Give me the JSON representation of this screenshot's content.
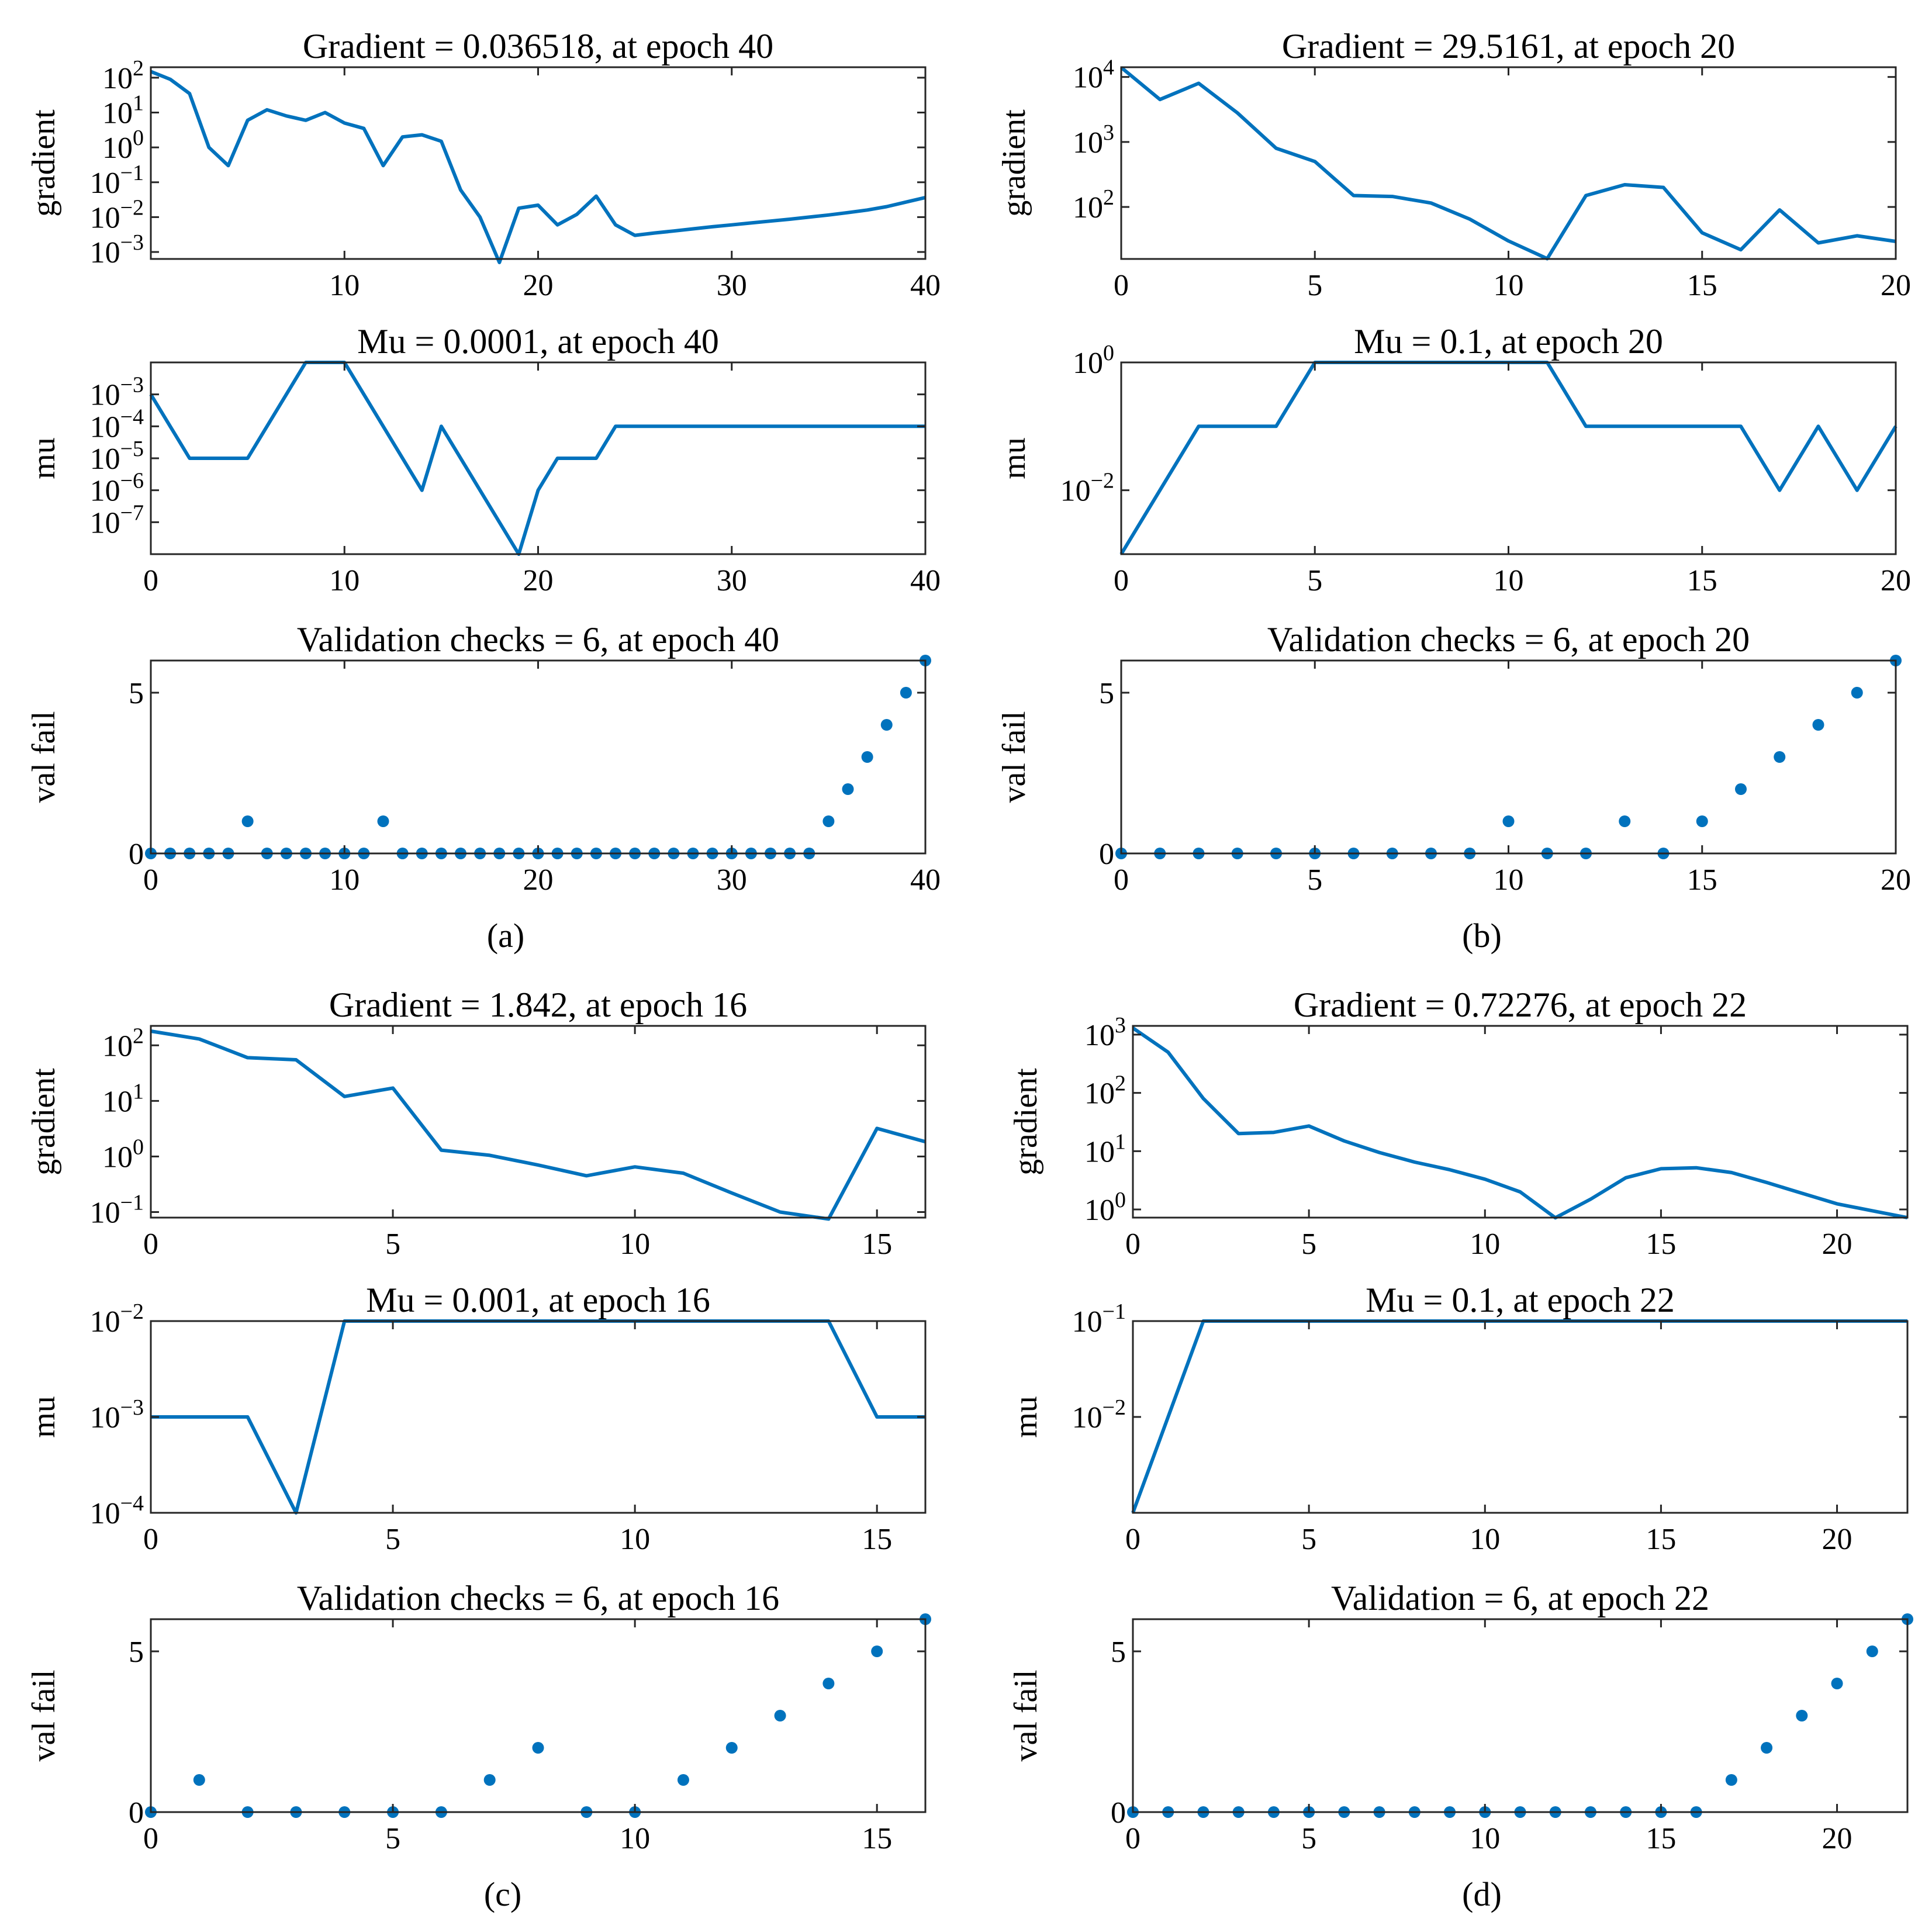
{
  "colors": {
    "series": "#0072BD",
    "axes": "#262626",
    "background": "#ffffff"
  },
  "panel_labels": {
    "a": "(a)",
    "b": "(b)",
    "c": "(c)",
    "d": "(d)"
  },
  "chart_data": [
    {
      "id": "a1",
      "type": "line",
      "title": "Gradient = 0.036518,  at epoch 40",
      "ylabel": "gradient",
      "yscale": "log",
      "xlim": [
        0,
        40
      ],
      "ylim_exp": [
        -3.2,
        2.3
      ],
      "xticks": [
        10,
        20,
        30,
        40
      ],
      "xtick_labels": [
        "10",
        "20",
        "30",
        "40"
      ],
      "yticks_exp": [
        -3,
        -2,
        -1,
        0,
        1,
        2
      ],
      "ytick_labels": [
        "10^-3",
        "10^-2",
        "10^-1",
        "10^0",
        "10^1",
        "10^2"
      ],
      "x": [
        0,
        1,
        2,
        3,
        4,
        5,
        6,
        7,
        8,
        9,
        10,
        11,
        12,
        13,
        14,
        15,
        16,
        17,
        18,
        19,
        20,
        21,
        22,
        23,
        24,
        25,
        26,
        27,
        28,
        29,
        30,
        31,
        32,
        33,
        34,
        35,
        36,
        37,
        38,
        39,
        40
      ],
      "values": [
        150,
        90,
        35,
        1.0,
        0.3,
        6,
        12,
        8,
        6,
        10,
        5,
        3.5,
        0.3,
        2,
        2.3,
        1.5,
        0.06,
        0.01,
        0.0005,
        0.018,
        0.022,
        0.006,
        0.012,
        0.04,
        0.006,
        0.003,
        0.0035,
        0.004,
        0.0046,
        0.0053,
        0.006,
        0.0068,
        0.0077,
        0.0087,
        0.01,
        0.0115,
        0.0135,
        0.016,
        0.02,
        0.027,
        0.036518
      ]
    },
    {
      "id": "a2",
      "type": "line",
      "title": "Mu = 0.0001, at epoch 40",
      "ylabel": "mu",
      "yscale": "log",
      "xlim": [
        0,
        40
      ],
      "ylim_exp": [
        -8,
        -2
      ],
      "xticks": [
        0,
        10,
        20,
        30,
        40
      ],
      "xtick_labels": [
        "0",
        "10",
        "20",
        "30",
        "40"
      ],
      "yticks_exp": [
        -7,
        -6,
        -5,
        -4,
        -3
      ],
      "ytick_labels": [
        "10^-7",
        "10^-6",
        "10^-5",
        "10^-4",
        "10^-3"
      ],
      "x": [
        0,
        2,
        5,
        8,
        10,
        14,
        15,
        19,
        20,
        21,
        23,
        24,
        40
      ],
      "values": [
        0.001,
        1e-05,
        1e-05,
        0.01,
        0.01,
        1e-06,
        0.0001,
        1e-08,
        1e-06,
        1e-05,
        1e-05,
        0.0001,
        0.0001
      ]
    },
    {
      "id": "a3",
      "type": "scatter",
      "title": "Validation checks = 6, at epoch 40",
      "ylabel": "val fail",
      "yscale": "linear",
      "xlim": [
        0,
        40
      ],
      "ylim": [
        0,
        6
      ],
      "xticks": [
        0,
        10,
        20,
        30,
        40
      ],
      "xtick_labels": [
        "0",
        "10",
        "20",
        "30",
        "40"
      ],
      "yticks": [
        0,
        5
      ],
      "ytick_labels": [
        "0",
        "5"
      ],
      "x": [
        0,
        1,
        2,
        3,
        4,
        5,
        6,
        7,
        8,
        9,
        10,
        11,
        12,
        13,
        14,
        15,
        16,
        17,
        18,
        19,
        20,
        21,
        22,
        23,
        24,
        25,
        26,
        27,
        28,
        29,
        30,
        31,
        32,
        33,
        34,
        35,
        36,
        37,
        38,
        39,
        40
      ],
      "values": [
        0,
        0,
        0,
        0,
        0,
        1,
        0,
        0,
        0,
        0,
        0,
        0,
        1,
        0,
        0,
        0,
        0,
        0,
        0,
        0,
        0,
        0,
        0,
        0,
        0,
        0,
        0,
        0,
        0,
        0,
        0,
        0,
        0,
        0,
        0,
        1,
        2,
        3,
        4,
        5,
        6
      ]
    },
    {
      "id": "b1",
      "type": "line",
      "title": "Gradient = 29.5161, at epoch 20",
      "ylabel": "gradient",
      "yscale": "log",
      "xlim": [
        0,
        20
      ],
      "ylim_exp": [
        1.2,
        4.15
      ],
      "xticks": [
        0,
        5,
        10,
        15,
        20
      ],
      "xtick_labels": [
        "0",
        "5",
        "10",
        "15",
        "20"
      ],
      "yticks_exp": [
        2,
        3,
        4
      ],
      "ytick_labels": [
        "10^2",
        "10^3",
        "10^4"
      ],
      "x": [
        0,
        1,
        2,
        3,
        4,
        5,
        6,
        7,
        8,
        9,
        10,
        11,
        12,
        13,
        14,
        15,
        16,
        17,
        18,
        19,
        20
      ],
      "values": [
        14000,
        4500,
        8000,
        2800,
        800,
        500,
        150,
        145,
        115,
        65,
        30,
        16,
        150,
        220,
        200,
        40,
        22,
        90,
        28,
        36,
        29.5161
      ]
    },
    {
      "id": "b2",
      "type": "line",
      "title": "Mu = 0.1, at epoch 20",
      "ylabel": "mu",
      "yscale": "log",
      "xlim": [
        0,
        20
      ],
      "ylim_exp": [
        -3,
        0
      ],
      "xticks": [
        0,
        5,
        10,
        15,
        20
      ],
      "xtick_labels": [
        "0",
        "5",
        "10",
        "15",
        "20"
      ],
      "yticks_exp": [
        -2,
        0
      ],
      "ytick_labels": [
        "10^-2",
        "10^0"
      ],
      "x": [
        0,
        2,
        4,
        5,
        11,
        12,
        16,
        17,
        18,
        19,
        20
      ],
      "values": [
        0.001,
        0.1,
        0.1,
        1,
        1,
        0.1,
        0.1,
        0.01,
        0.1,
        0.01,
        0.1
      ]
    },
    {
      "id": "b3",
      "type": "scatter",
      "title": "Validation checks = 6, at epoch 20",
      "ylabel": "val fail",
      "yscale": "linear",
      "xlim": [
        0,
        20
      ],
      "ylim": [
        0,
        6
      ],
      "xticks": [
        0,
        5,
        10,
        15,
        20
      ],
      "xtick_labels": [
        "0",
        "5",
        "10",
        "15",
        "20"
      ],
      "yticks": [
        0,
        5
      ],
      "ytick_labels": [
        "0",
        "5"
      ],
      "x": [
        0,
        1,
        2,
        3,
        4,
        5,
        6,
        7,
        8,
        9,
        10,
        11,
        12,
        13,
        14,
        15,
        16,
        17,
        18,
        19,
        20
      ],
      "values": [
        0,
        0,
        0,
        0,
        0,
        0,
        0,
        0,
        0,
        0,
        1,
        0,
        0,
        1,
        0,
        1,
        2,
        3,
        4,
        5,
        6
      ]
    },
    {
      "id": "c1",
      "type": "line",
      "title": "Gradient = 1.842, at epoch 16",
      "ylabel": "gradient",
      "yscale": "log",
      "xlim": [
        0,
        16
      ],
      "ylim_exp": [
        -1.1,
        2.35
      ],
      "xticks": [
        0,
        5,
        10,
        15
      ],
      "xtick_labels": [
        "0",
        "5",
        "10",
        "15"
      ],
      "yticks_exp": [
        -1,
        0,
        1,
        2
      ],
      "ytick_labels": [
        "10^-1",
        "10^0",
        "10^1",
        "10^2"
      ],
      "x": [
        0,
        1,
        2,
        3,
        4,
        5,
        6,
        7,
        8,
        9,
        10,
        11,
        12,
        13,
        14,
        15,
        16
      ],
      "values": [
        180,
        130,
        60,
        55,
        12,
        17,
        1.3,
        1.05,
        0.7,
        0.45,
        0.65,
        0.5,
        0.22,
        0.1,
        0.075,
        3.2,
        1.842
      ]
    },
    {
      "id": "c2",
      "type": "line",
      "title": "Mu = 0.001, at epoch 16",
      "ylabel": "mu",
      "yscale": "log",
      "xlim": [
        0,
        16
      ],
      "ylim_exp": [
        -4,
        -2
      ],
      "xticks": [
        0,
        5,
        10,
        15
      ],
      "xtick_labels": [
        "0",
        "5",
        "10",
        "15"
      ],
      "yticks_exp": [
        -4,
        -3,
        -2
      ],
      "ytick_labels": [
        "10^-4",
        "10^-3",
        "10^-2"
      ],
      "x": [
        0,
        2,
        3,
        4,
        14,
        15,
        16
      ],
      "values": [
        0.001,
        0.001,
        0.0001,
        0.01,
        0.01,
        0.001,
        0.001
      ]
    },
    {
      "id": "c3",
      "type": "scatter",
      "title": "Validation checks = 6, at epoch 16",
      "ylabel": "val fail",
      "yscale": "linear",
      "xlim": [
        0,
        16
      ],
      "ylim": [
        0,
        6
      ],
      "xticks": [
        0,
        5,
        10,
        15
      ],
      "xtick_labels": [
        "0",
        "5",
        "10",
        "15"
      ],
      "yticks": [
        0,
        5
      ],
      "ytick_labels": [
        "0",
        "5"
      ],
      "x": [
        0,
        1,
        2,
        3,
        4,
        5,
        6,
        7,
        8,
        9,
        10,
        11,
        12,
        13,
        14,
        15,
        16
      ],
      "values": [
        0,
        1,
        0,
        0,
        0,
        0,
        0,
        1,
        2,
        0,
        0,
        1,
        2,
        3,
        4,
        5,
        6
      ]
    },
    {
      "id": "d1",
      "type": "line",
      "title": "Gradient = 0.72276, at epoch 22",
      "ylabel": "gradient",
      "yscale": "log",
      "xlim": [
        0,
        22
      ],
      "ylim_exp": [
        -0.14,
        3.15
      ],
      "xticks": [
        0,
        5,
        10,
        15,
        20
      ],
      "xtick_labels": [
        "0",
        "5",
        "10",
        "15",
        "20"
      ],
      "yticks_exp": [
        0,
        1,
        2,
        3
      ],
      "ytick_labels": [
        "10^0",
        "10^1",
        "10^2",
        "10^3"
      ],
      "x": [
        0,
        1,
        2,
        3,
        4,
        5,
        6,
        7,
        8,
        9,
        10,
        11,
        12,
        13,
        14,
        15,
        16,
        17,
        18,
        19,
        20,
        21,
        22
      ],
      "values": [
        1300,
        500,
        80,
        20,
        21,
        27,
        15,
        9.5,
        6.5,
        4.8,
        3.3,
        2.0,
        0.72,
        1.5,
        3.5,
        5.0,
        5.2,
        4.3,
        2.9,
        1.9,
        1.25,
        0.95,
        0.72276
      ]
    },
    {
      "id": "d2",
      "type": "line",
      "title": "Mu = 0.1, at epoch 22",
      "ylabel": "mu",
      "yscale": "log",
      "xlim": [
        0,
        22
      ],
      "ylim_exp": [
        -3,
        -1
      ],
      "xticks": [
        0,
        5,
        10,
        15,
        20
      ],
      "xtick_labels": [
        "0",
        "5",
        "10",
        "15",
        "20"
      ],
      "yticks_exp": [
        -2,
        -1
      ],
      "ytick_labels": [
        "10^-2",
        "10^-1"
      ],
      "x": [
        0,
        2,
        22
      ],
      "values": [
        0.001,
        0.1,
        0.1
      ]
    },
    {
      "id": "d3",
      "type": "scatter",
      "title": "Validation = 6, at epoch 22",
      "ylabel": "val fail",
      "yscale": "linear",
      "xlim": [
        0,
        22
      ],
      "ylim": [
        0,
        6
      ],
      "xticks": [
        0,
        5,
        10,
        15,
        20
      ],
      "xtick_labels": [
        "0",
        "5",
        "10",
        "15",
        "20"
      ],
      "yticks": [
        0,
        5
      ],
      "ytick_labels": [
        "0",
        "5"
      ],
      "x": [
        0,
        1,
        2,
        3,
        4,
        5,
        6,
        7,
        8,
        9,
        10,
        11,
        12,
        13,
        14,
        15,
        16,
        17,
        18,
        19,
        20,
        21,
        22
      ],
      "values": [
        0,
        0,
        0,
        0,
        0,
        0,
        0,
        0,
        0,
        0,
        0,
        0,
        0,
        0,
        0,
        0,
        0,
        1,
        2,
        3,
        4,
        5,
        6
      ]
    }
  ]
}
